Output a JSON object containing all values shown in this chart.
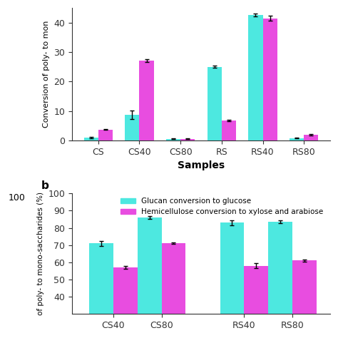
{
  "top_chart": {
    "categories": [
      "CS",
      "CS40",
      "CS80",
      "RS",
      "RS40",
      "RS80"
    ],
    "cyan_values": [
      1.0,
      8.7,
      0.5,
      25.0,
      42.5,
      0.8
    ],
    "pink_values": [
      3.7,
      27.0,
      0.5,
      6.8,
      41.5,
      1.9
    ],
    "cyan_errors": [
      0.2,
      1.5,
      0.1,
      0.3,
      0.5,
      0.1
    ],
    "pink_errors": [
      0.2,
      0.5,
      0.1,
      0.2,
      0.8,
      0.2
    ],
    "ylabel": "Conversion of poly- to mon",
    "xlabel": "Samples",
    "ylim": [
      0,
      45
    ],
    "yticks": [
      0,
      10,
      20,
      30,
      40
    ],
    "bar_width": 0.35
  },
  "bottom_chart": {
    "categories": [
      "CS40",
      "CS80",
      "RS40",
      "RS80"
    ],
    "cyan_values": [
      71.0,
      86.0,
      83.0,
      83.5
    ],
    "pink_values": [
      57.0,
      71.0,
      58.0,
      61.0
    ],
    "cyan_errors": [
      1.5,
      0.8,
      1.5,
      0.8
    ],
    "pink_errors": [
      0.8,
      0.5,
      1.5,
      0.5
    ],
    "ylabel": "of poly- to mono-saccharides (%)",
    "xlabel": "",
    "ylim": [
      30,
      100
    ],
    "yticks": [
      40,
      50,
      60,
      70,
      80,
      90,
      100
    ],
    "bar_width": 0.35,
    "legend_labels": [
      "Glucan conversion to glucose",
      "Hemicellulose conversion to xylose and arabiose"
    ],
    "label_b": "b"
  },
  "cyan_color": "#4DE8E0",
  "pink_color": "#E84DE0",
  "background_color": "#ffffff",
  "fontsize": 9
}
